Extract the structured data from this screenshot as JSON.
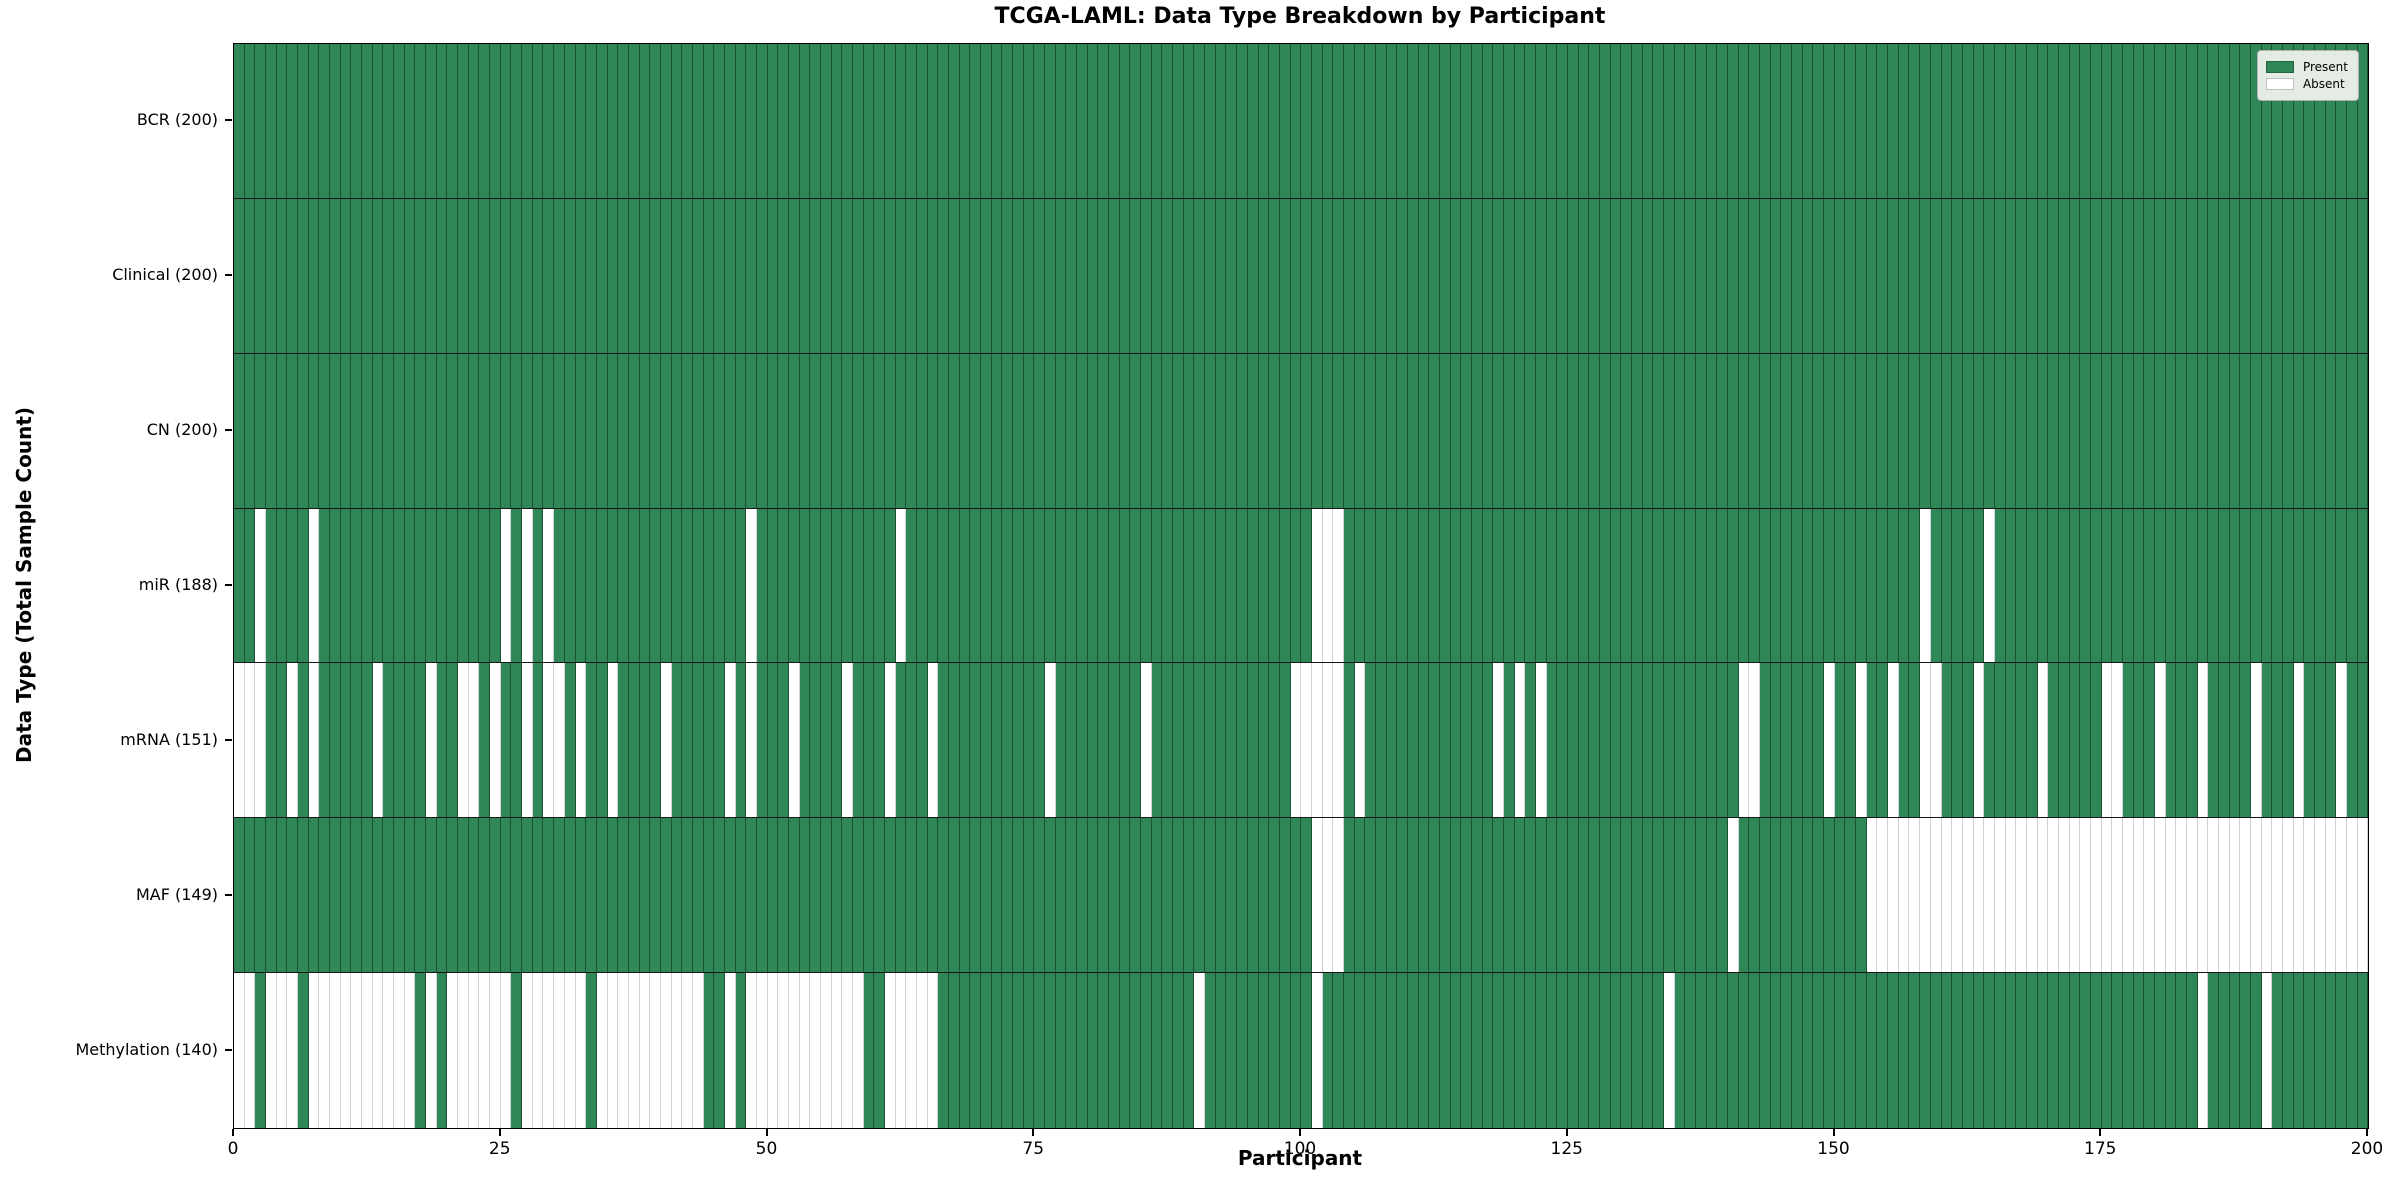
{
  "chart_data": {
    "type": "heatmap",
    "title": "TCGA-LAML: Data Type Breakdown by Participant",
    "xlabel": "Participant",
    "ylabel": "Data Type (Total Sample Count)",
    "n_participants": 200,
    "x_range": [
      0,
      200
    ],
    "x_ticks": [
      0,
      25,
      50,
      75,
      100,
      125,
      150,
      175,
      200
    ],
    "grid": "column separators drawn between participants",
    "present_color": "#2f8757",
    "absent_color": "#ffffff",
    "present_grid_color": "rgba(10,35,22,0.55)",
    "absent_grid_color": "rgba(0,0,0,0.18)",
    "row_separator_color": "#161616",
    "legend": {
      "position": "upper right",
      "items": [
        {
          "label": "Present",
          "color": "#2f8757"
        },
        {
          "label": "Absent",
          "color": "#ffffff"
        }
      ]
    },
    "rows": [
      {
        "name": "BCR",
        "label": "BCR (200)",
        "present_count": 200,
        "absent_columns": []
      },
      {
        "name": "Clinical",
        "label": "Clinical (200)",
        "present_count": 200,
        "absent_columns": []
      },
      {
        "name": "CN",
        "label": "CN (200)",
        "present_count": 200,
        "absent_columns": []
      },
      {
        "name": "miR",
        "label": "miR (188)",
        "present_count": 188,
        "absent_columns": [
          2,
          7,
          25,
          27,
          29,
          48,
          62,
          101,
          102,
          103,
          158,
          164
        ]
      },
      {
        "name": "mRNA",
        "label": "mRNA (151)",
        "present_count": 151,
        "absent_columns": [
          0,
          1,
          2,
          5,
          7,
          13,
          18,
          21,
          22,
          24,
          27,
          29,
          30,
          32,
          35,
          40,
          46,
          48,
          52,
          57,
          61,
          65,
          76,
          85,
          99,
          100,
          101,
          102,
          103,
          105,
          118,
          120,
          122,
          141,
          142,
          149,
          152,
          155,
          158,
          159,
          163,
          169,
          175,
          176,
          180,
          184,
          189,
          193,
          197
        ]
      },
      {
        "name": "MAF",
        "label": "MAF (149)",
        "present_count": 149,
        "absent_columns": [
          101,
          102,
          103,
          140,
          153,
          154,
          155,
          156,
          157,
          158,
          159,
          160,
          161,
          162,
          163,
          164,
          165,
          166,
          167,
          168,
          169,
          170,
          171,
          172,
          173,
          174,
          175,
          176,
          177,
          178,
          179,
          180,
          181,
          182,
          183,
          184,
          185,
          186,
          187,
          188,
          189,
          190,
          191,
          192,
          193,
          194,
          195,
          196,
          197,
          198,
          199
        ]
      },
      {
        "name": "Methylation",
        "label": "Methylation (140)",
        "present_count": 140,
        "absent_columns": [
          0,
          1,
          3,
          4,
          5,
          7,
          8,
          9,
          10,
          11,
          12,
          13,
          14,
          15,
          16,
          18,
          20,
          21,
          22,
          23,
          24,
          25,
          27,
          28,
          29,
          30,
          31,
          32,
          34,
          35,
          36,
          37,
          38,
          39,
          40,
          41,
          42,
          43,
          46,
          48,
          49,
          50,
          51,
          52,
          53,
          54,
          55,
          56,
          57,
          58,
          61,
          62,
          63,
          64,
          65,
          90,
          101,
          134,
          184,
          190
        ]
      }
    ]
  }
}
